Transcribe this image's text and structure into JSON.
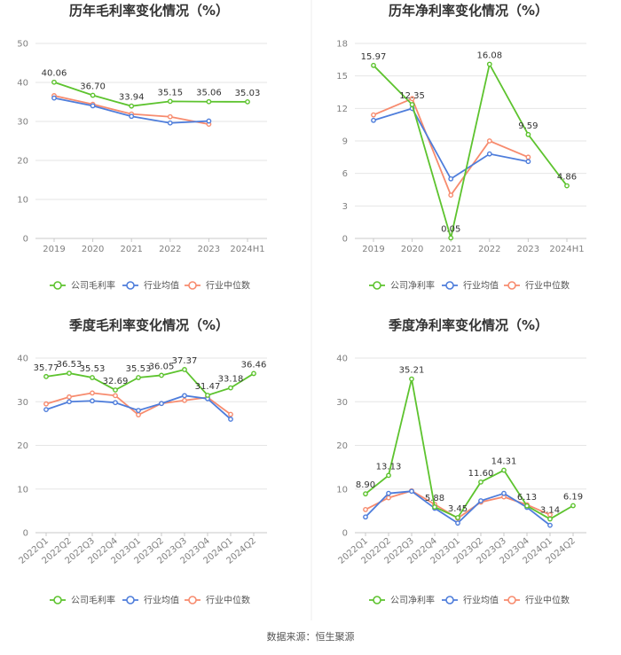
{
  "footer": {
    "source": "数据来源：恒生聚源"
  },
  "colors": {
    "company": "#5dc32e",
    "avg": "#4e7ddb",
    "median": "#f78b6e",
    "grid": "#e6e6e6",
    "axis": "#c8c8c8"
  },
  "chart_data": [
    {
      "id": "annual-gross",
      "type": "line",
      "title": "历年毛利率变化情况（%）",
      "categories": [
        "2019",
        "2020",
        "2021",
        "2022",
        "2023",
        "2024H1"
      ],
      "ylim": [
        0,
        50
      ],
      "yticks": [
        0,
        10,
        20,
        30,
        40,
        50
      ],
      "xlabel": "",
      "ylabel": "",
      "legend": "bottom",
      "series": [
        {
          "name": "公司毛利率",
          "values": [
            40.06,
            36.7,
            33.94,
            35.15,
            35.06,
            35.03
          ],
          "labels": [
            "40.06",
            "36.70",
            "33.94",
            "35.15",
            "35.06",
            "35.03"
          ]
        },
        {
          "name": "行业均值",
          "values": [
            36.0,
            34.0,
            31.3,
            29.6,
            30.1,
            null
          ]
        },
        {
          "name": "行业中位数",
          "values": [
            36.6,
            34.4,
            31.9,
            31.2,
            29.3,
            null
          ]
        }
      ]
    },
    {
      "id": "annual-net",
      "type": "line",
      "title": "历年净利率变化情况（%）",
      "categories": [
        "2019",
        "2020",
        "2021",
        "2022",
        "2023",
        "2024H1"
      ],
      "ylim": [
        0,
        18
      ],
      "yticks": [
        0,
        3,
        6,
        9,
        12,
        15,
        18
      ],
      "xlabel": "",
      "ylabel": "",
      "legend": "bottom",
      "series": [
        {
          "name": "公司净利率",
          "values": [
            15.97,
            12.35,
            0.05,
            16.08,
            9.59,
            4.86
          ],
          "labels": [
            "15.97",
            "12.35",
            "0.05",
            "16.08",
            "9.59",
            "4.86"
          ]
        },
        {
          "name": "行业均值",
          "values": [
            10.9,
            12.0,
            5.5,
            7.8,
            7.1,
            null
          ]
        },
        {
          "name": "行业中位数",
          "values": [
            11.4,
            12.9,
            4.0,
            9.0,
            7.5,
            null
          ]
        }
      ]
    },
    {
      "id": "quarterly-gross",
      "type": "line",
      "title": "季度毛利率变化情况（%）",
      "categories": [
        "2022Q1",
        "2022Q2",
        "2022Q3",
        "2022Q4",
        "2023Q1",
        "2023Q2",
        "2023Q3",
        "2023Q4",
        "2024Q1",
        "2024Q2"
      ],
      "ylim": [
        0,
        40
      ],
      "yticks": [
        0,
        10,
        20,
        30,
        40
      ],
      "xlabel": "",
      "ylabel": "",
      "legend": "bottom",
      "series": [
        {
          "name": "公司毛利率",
          "values": [
            35.77,
            36.53,
            35.53,
            32.69,
            35.53,
            36.05,
            37.37,
            31.47,
            33.18,
            36.46
          ],
          "labels": [
            "35.77",
            "36.53",
            "35.53",
            "32.69",
            "35.53",
            "36.05",
            "37.37",
            "31.47",
            "33.18",
            "36.46"
          ]
        },
        {
          "name": "行业均值",
          "values": [
            28.2,
            30.0,
            30.2,
            29.8,
            28.0,
            29.6,
            31.4,
            30.7,
            26.0,
            null
          ]
        },
        {
          "name": "行业中位数",
          "values": [
            29.5,
            31.1,
            32.0,
            31.4,
            27.0,
            29.6,
            30.3,
            31.0,
            27.1,
            null
          ]
        }
      ]
    },
    {
      "id": "quarterly-net",
      "type": "line",
      "title": "季度净利率变化情况（%）",
      "categories": [
        "2022Q1",
        "2022Q2",
        "2022Q3",
        "2022Q4",
        "2023Q1",
        "2023Q2",
        "2023Q3",
        "2023Q4",
        "2024Q1",
        "2024Q2"
      ],
      "ylim": [
        0,
        40
      ],
      "yticks": [
        0,
        10,
        20,
        30,
        40
      ],
      "xlabel": "",
      "ylabel": "",
      "legend": "bottom",
      "series": [
        {
          "name": "公司净利率",
          "values": [
            8.9,
            13.13,
            35.21,
            5.88,
            3.45,
            11.6,
            14.31,
            6.13,
            3.14,
            6.19
          ],
          "labels": [
            "8.90",
            "13.13",
            "35.21",
            "5.88",
            "3.45",
            "11.60",
            "14.31",
            "6.13",
            "3.14",
            "6.19"
          ]
        },
        {
          "name": "行业均值",
          "values": [
            3.6,
            9.0,
            9.5,
            5.6,
            2.2,
            7.3,
            9.0,
            5.8,
            1.7,
            null
          ]
        },
        {
          "name": "行业中位数",
          "values": [
            5.3,
            8.0,
            9.6,
            6.5,
            3.3,
            7.0,
            8.2,
            6.4,
            4.1,
            null
          ]
        }
      ]
    }
  ]
}
